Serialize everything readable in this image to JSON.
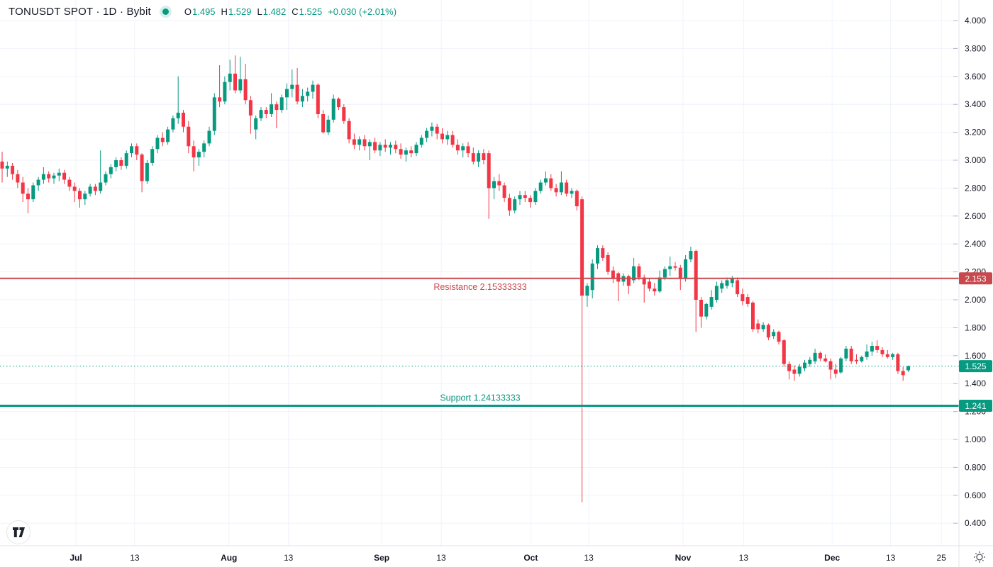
{
  "header": {
    "symbol_title": "TONUSDT SPOT · 1D · Bybit",
    "market_status": "open",
    "o_label": "O",
    "o_value": "1.495",
    "h_label": "H",
    "h_value": "1.529",
    "l_label": "L",
    "l_value": "1.482",
    "c_label": "C",
    "c_value": "1.525",
    "change": "+0.030 (+2.01%)"
  },
  "colors": {
    "up": "#089981",
    "down": "#f23645",
    "resistance": "#c9484e",
    "support": "#089981",
    "last_price": "#089981",
    "grid": "#f0f3fa",
    "border": "#e0e3eb",
    "axis_text": "#131722",
    "badge_text": "#ffffff",
    "background": "#ffffff",
    "icon": "#50535e"
  },
  "chart_data": {
    "type": "candlestick",
    "title": "TONUSDT SPOT · 1D · Bybit",
    "symbol": "TONUSDT",
    "market": "SPOT",
    "interval": "1D",
    "exchange": "Bybit",
    "last": {
      "open": 1.495,
      "high": 1.529,
      "low": 1.482,
      "close": 1.525,
      "change": "+0.030",
      "change_pct": "+2.01%"
    },
    "y_axis": {
      "tick_prices": [
        4.0,
        3.8,
        3.6,
        3.4,
        3.2,
        3.0,
        2.8,
        2.6,
        2.4,
        2.2,
        2.0,
        1.8,
        1.6,
        1.4,
        1.2,
        1.0,
        0.8,
        0.6,
        0.4
      ],
      "badges": [
        {
          "label": "2.153",
          "price": 2.1533333,
          "kind": "resistance"
        },
        {
          "label": "1.525",
          "price": 1.525,
          "kind": "last"
        },
        {
          "label": "1.241",
          "price": 1.2413333,
          "kind": "support"
        }
      ]
    },
    "x_axis": {
      "ticks": [
        {
          "label": "Jul",
          "index": 14.25,
          "major": true
        },
        {
          "label": "13",
          "index": 25.6,
          "major": false
        },
        {
          "label": "Aug",
          "index": 43.8,
          "major": true
        },
        {
          "label": "13",
          "index": 55.3,
          "major": false
        },
        {
          "label": "Sep",
          "index": 73.3,
          "major": true
        },
        {
          "label": "13",
          "index": 84.8,
          "major": false
        },
        {
          "label": "Oct",
          "index": 102.1,
          "major": true
        },
        {
          "label": "13",
          "index": 113.3,
          "major": false
        },
        {
          "label": "Nov",
          "index": 131.5,
          "major": true
        },
        {
          "label": "13",
          "index": 143.2,
          "major": false
        },
        {
          "label": "Dec",
          "index": 160.3,
          "major": true
        },
        {
          "label": "13",
          "index": 171.6,
          "major": false
        },
        {
          "label": "25",
          "index": 181.4,
          "major": false
        }
      ]
    },
    "levels": {
      "resistance": {
        "label": "Resistance 2.15333333",
        "price": 2.1533333
      },
      "support": {
        "label": "Support 1.24133333",
        "price": 1.2413333
      },
      "last_price": {
        "price": 1.525,
        "style": "dotted"
      }
    },
    "candles": [
      [
        2.99,
        3.06,
        2.84,
        2.94
      ],
      [
        2.94,
        2.99,
        2.88,
        2.96
      ],
      [
        2.96,
        2.98,
        2.86,
        2.9
      ],
      [
        2.9,
        2.93,
        2.8,
        2.84
      ],
      [
        2.84,
        2.88,
        2.7,
        2.76
      ],
      [
        2.76,
        2.8,
        2.62,
        2.72
      ],
      [
        2.72,
        2.84,
        2.7,
        2.82
      ],
      [
        2.82,
        2.88,
        2.78,
        2.86
      ],
      [
        2.86,
        2.95,
        2.83,
        2.9
      ],
      [
        2.9,
        2.92,
        2.84,
        2.87
      ],
      [
        2.87,
        2.91,
        2.83,
        2.89
      ],
      [
        2.89,
        2.94,
        2.85,
        2.91
      ],
      [
        2.91,
        2.93,
        2.83,
        2.86
      ],
      [
        2.86,
        2.88,
        2.78,
        2.81
      ],
      [
        2.81,
        2.84,
        2.7,
        2.78
      ],
      [
        2.78,
        2.8,
        2.66,
        2.72
      ],
      [
        2.72,
        2.78,
        2.68,
        2.76
      ],
      [
        2.76,
        2.83,
        2.74,
        2.81
      ],
      [
        2.81,
        2.83,
        2.75,
        2.78
      ],
      [
        2.78,
        3.07,
        2.76,
        2.84
      ],
      [
        2.84,
        2.92,
        2.82,
        2.9
      ],
      [
        2.9,
        2.97,
        2.87,
        2.95
      ],
      [
        2.95,
        3.02,
        2.92,
        3.0
      ],
      [
        3.0,
        3.02,
        2.93,
        2.96
      ],
      [
        2.96,
        3.07,
        2.94,
        3.05
      ],
      [
        3.05,
        3.12,
        3.02,
        3.1
      ],
      [
        3.1,
        3.12,
        3.0,
        3.04
      ],
      [
        3.04,
        3.05,
        2.77,
        2.85
      ],
      [
        2.85,
        3.0,
        2.83,
        2.98
      ],
      [
        2.98,
        3.1,
        2.96,
        3.08
      ],
      [
        3.08,
        3.18,
        3.05,
        3.16
      ],
      [
        3.16,
        3.2,
        3.1,
        3.13
      ],
      [
        3.13,
        3.24,
        3.11,
        3.22
      ],
      [
        3.22,
        3.32,
        3.2,
        3.3
      ],
      [
        3.3,
        3.6,
        3.26,
        3.34
      ],
      [
        3.34,
        3.36,
        3.2,
        3.24
      ],
      [
        3.24,
        3.28,
        3.05,
        3.1
      ],
      [
        3.1,
        3.14,
        2.92,
        3.02
      ],
      [
        3.02,
        3.08,
        2.96,
        3.06
      ],
      [
        3.06,
        3.14,
        3.02,
        3.12
      ],
      [
        3.12,
        3.24,
        3.1,
        3.21
      ],
      [
        3.21,
        3.48,
        3.18,
        3.45
      ],
      [
        3.45,
        3.68,
        3.38,
        3.42
      ],
      [
        3.42,
        3.6,
        3.4,
        3.56
      ],
      [
        3.56,
        3.72,
        3.5,
        3.62
      ],
      [
        3.62,
        3.75,
        3.48,
        3.5
      ],
      [
        3.5,
        3.74,
        3.48,
        3.58
      ],
      [
        3.58,
        3.69,
        3.4,
        3.43
      ],
      [
        3.43,
        3.46,
        3.19,
        3.32
      ],
      [
        3.22,
        3.32,
        3.15,
        3.3
      ],
      [
        3.3,
        3.38,
        3.28,
        3.36
      ],
      [
        3.36,
        3.38,
        3.3,
        3.33
      ],
      [
        3.33,
        3.48,
        3.31,
        3.4
      ],
      [
        3.4,
        3.42,
        3.23,
        3.36
      ],
      [
        3.36,
        3.47,
        3.34,
        3.45
      ],
      [
        3.45,
        3.55,
        3.36,
        3.51
      ],
      [
        3.51,
        3.65,
        3.45,
        3.54
      ],
      [
        3.54,
        3.66,
        3.4,
        3.42
      ],
      [
        3.42,
        3.51,
        3.38,
        3.46
      ],
      [
        3.46,
        3.52,
        3.42,
        3.49
      ],
      [
        3.49,
        3.57,
        3.44,
        3.54
      ],
      [
        3.54,
        3.55,
        3.3,
        3.33
      ],
      [
        3.33,
        3.36,
        3.19,
        3.2
      ],
      [
        3.2,
        3.32,
        3.18,
        3.29
      ],
      [
        3.29,
        3.47,
        3.27,
        3.44
      ],
      [
        3.44,
        3.45,
        3.36,
        3.38
      ],
      [
        3.38,
        3.4,
        3.26,
        3.28
      ],
      [
        3.28,
        3.3,
        3.12,
        3.15
      ],
      [
        3.15,
        3.19,
        3.08,
        3.11
      ],
      [
        3.11,
        3.17,
        3.07,
        3.15
      ],
      [
        3.15,
        3.18,
        3.07,
        3.1
      ],
      [
        3.1,
        3.15,
        3.0,
        3.13
      ],
      [
        3.13,
        3.16,
        3.05,
        3.07
      ],
      [
        3.07,
        3.13,
        3.03,
        3.11
      ],
      [
        3.11,
        3.15,
        3.06,
        3.09
      ],
      [
        3.09,
        3.13,
        3.04,
        3.11
      ],
      [
        3.11,
        3.14,
        3.05,
        3.08
      ],
      [
        3.08,
        3.12,
        3.01,
        3.04
      ],
      [
        3.04,
        3.09,
        2.99,
        3.07
      ],
      [
        3.07,
        3.1,
        3.02,
        3.05
      ],
      [
        3.05,
        3.13,
        3.03,
        3.11
      ],
      [
        3.11,
        3.18,
        3.09,
        3.16
      ],
      [
        3.16,
        3.23,
        3.13,
        3.21
      ],
      [
        3.21,
        3.27,
        3.17,
        3.24
      ],
      [
        3.24,
        3.26,
        3.15,
        3.19
      ],
      [
        3.19,
        3.23,
        3.12,
        3.15
      ],
      [
        3.15,
        3.21,
        3.11,
        3.18
      ],
      [
        3.18,
        3.21,
        3.09,
        3.11
      ],
      [
        3.11,
        3.15,
        3.04,
        3.07
      ],
      [
        3.07,
        3.12,
        3.02,
        3.1
      ],
      [
        3.1,
        3.13,
        3.02,
        3.05
      ],
      [
        3.05,
        3.09,
        2.97,
        2.99
      ],
      [
        2.99,
        3.07,
        2.95,
        3.05
      ],
      [
        3.05,
        3.08,
        2.97,
        3.0
      ],
      [
        3.05,
        3.07,
        2.58,
        2.8
      ],
      [
        2.8,
        2.88,
        2.72,
        2.85
      ],
      [
        2.85,
        2.9,
        2.78,
        2.82
      ],
      [
        2.82,
        2.84,
        2.7,
        2.73
      ],
      [
        2.73,
        2.76,
        2.6,
        2.64
      ],
      [
        2.64,
        2.74,
        2.62,
        2.72
      ],
      [
        2.72,
        2.78,
        2.68,
        2.75
      ],
      [
        2.75,
        2.78,
        2.7,
        2.73
      ],
      [
        2.73,
        2.75,
        2.66,
        2.7
      ],
      [
        2.7,
        2.8,
        2.68,
        2.78
      ],
      [
        2.78,
        2.86,
        2.76,
        2.84
      ],
      [
        2.84,
        2.92,
        2.82,
        2.87
      ],
      [
        2.87,
        2.9,
        2.78,
        2.8
      ],
      [
        2.8,
        2.83,
        2.74,
        2.77
      ],
      [
        2.77,
        2.92,
        2.75,
        2.84
      ],
      [
        2.84,
        2.86,
        2.74,
        2.76
      ],
      [
        2.76,
        2.8,
        2.73,
        2.78
      ],
      [
        2.78,
        2.79,
        2.64,
        2.67
      ],
      [
        2.72,
        2.74,
        0.55,
        2.03
      ],
      [
        2.03,
        2.12,
        1.95,
        2.1
      ],
      [
        2.07,
        2.29,
        2.01,
        2.26
      ],
      [
        2.26,
        2.39,
        2.22,
        2.37
      ],
      [
        2.37,
        2.39,
        2.28,
        2.3
      ],
      [
        2.32,
        2.34,
        2.18,
        2.2
      ],
      [
        2.21,
        2.24,
        2.12,
        2.15
      ],
      [
        2.19,
        2.2,
        1.99,
        2.13
      ],
      [
        2.13,
        2.19,
        2.1,
        2.17
      ],
      [
        2.17,
        2.18,
        2.04,
        2.1
      ],
      [
        2.14,
        2.3,
        2.12,
        2.24
      ],
      [
        2.24,
        2.26,
        2.14,
        2.16
      ],
      [
        2.16,
        2.18,
        1.98,
        2.11
      ],
      [
        2.13,
        2.15,
        2.06,
        2.08
      ],
      [
        2.08,
        2.12,
        2.03,
        2.06
      ],
      [
        2.06,
        2.21,
        2.05,
        2.16
      ],
      [
        2.16,
        2.24,
        2.14,
        2.22
      ],
      [
        2.22,
        2.31,
        2.17,
        2.24
      ],
      [
        2.24,
        2.27,
        2.21,
        2.23
      ],
      [
        2.23,
        2.25,
        2.07,
        2.15
      ],
      [
        2.15,
        2.32,
        2.13,
        2.29
      ],
      [
        2.29,
        2.38,
        2.27,
        2.35
      ],
      [
        2.35,
        2.36,
        1.77,
        2.0
      ],
      [
        2.0,
        2.02,
        1.8,
        1.88
      ],
      [
        1.88,
        1.98,
        1.86,
        1.97
      ],
      [
        1.95,
        2.07,
        1.93,
        2.02
      ],
      [
        2.0,
        2.13,
        1.98,
        2.1
      ],
      [
        2.08,
        2.14,
        2.05,
        2.12
      ],
      [
        2.1,
        2.16,
        2.08,
        2.14
      ],
      [
        2.12,
        2.17,
        2.09,
        2.15
      ],
      [
        2.14,
        2.16,
        2.02,
        2.04
      ],
      [
        2.04,
        2.08,
        1.96,
        1.99
      ],
      [
        2.02,
        2.04,
        1.95,
        1.97
      ],
      [
        1.98,
        1.99,
        1.77,
        1.79
      ],
      [
        1.83,
        1.86,
        1.76,
        1.79
      ],
      [
        1.79,
        1.84,
        1.77,
        1.82
      ],
      [
        1.82,
        1.83,
        1.71,
        1.73
      ],
      [
        1.74,
        1.79,
        1.72,
        1.77
      ],
      [
        1.77,
        1.78,
        1.68,
        1.7
      ],
      [
        1.71,
        1.72,
        1.52,
        1.54
      ],
      [
        1.54,
        1.56,
        1.43,
        1.49
      ],
      [
        1.5,
        1.53,
        1.42,
        1.47
      ],
      [
        1.47,
        1.54,
        1.45,
        1.52
      ],
      [
        1.51,
        1.57,
        1.49,
        1.55
      ],
      [
        1.54,
        1.59,
        1.52,
        1.57
      ],
      [
        1.56,
        1.65,
        1.54,
        1.62
      ],
      [
        1.62,
        1.63,
        1.56,
        1.58
      ],
      [
        1.58,
        1.61,
        1.55,
        1.56
      ],
      [
        1.56,
        1.58,
        1.43,
        1.5
      ],
      [
        1.5,
        1.54,
        1.44,
        1.47
      ],
      [
        1.48,
        1.59,
        1.47,
        1.58
      ],
      [
        1.58,
        1.67,
        1.56,
        1.65
      ],
      [
        1.65,
        1.67,
        1.54,
        1.56
      ],
      [
        1.57,
        1.61,
        1.54,
        1.56
      ],
      [
        1.56,
        1.6,
        1.55,
        1.59
      ],
      [
        1.59,
        1.68,
        1.57,
        1.63
      ],
      [
        1.63,
        1.7,
        1.6,
        1.67
      ],
      [
        1.67,
        1.71,
        1.62,
        1.64
      ],
      [
        1.64,
        1.66,
        1.59,
        1.61
      ],
      [
        1.61,
        1.64,
        1.58,
        1.59
      ],
      [
        1.59,
        1.62,
        1.57,
        1.61
      ],
      [
        1.61,
        1.62,
        1.47,
        1.49
      ],
      [
        1.49,
        1.52,
        1.42,
        1.46
      ],
      [
        1.495,
        1.529,
        1.482,
        1.525
      ]
    ]
  }
}
